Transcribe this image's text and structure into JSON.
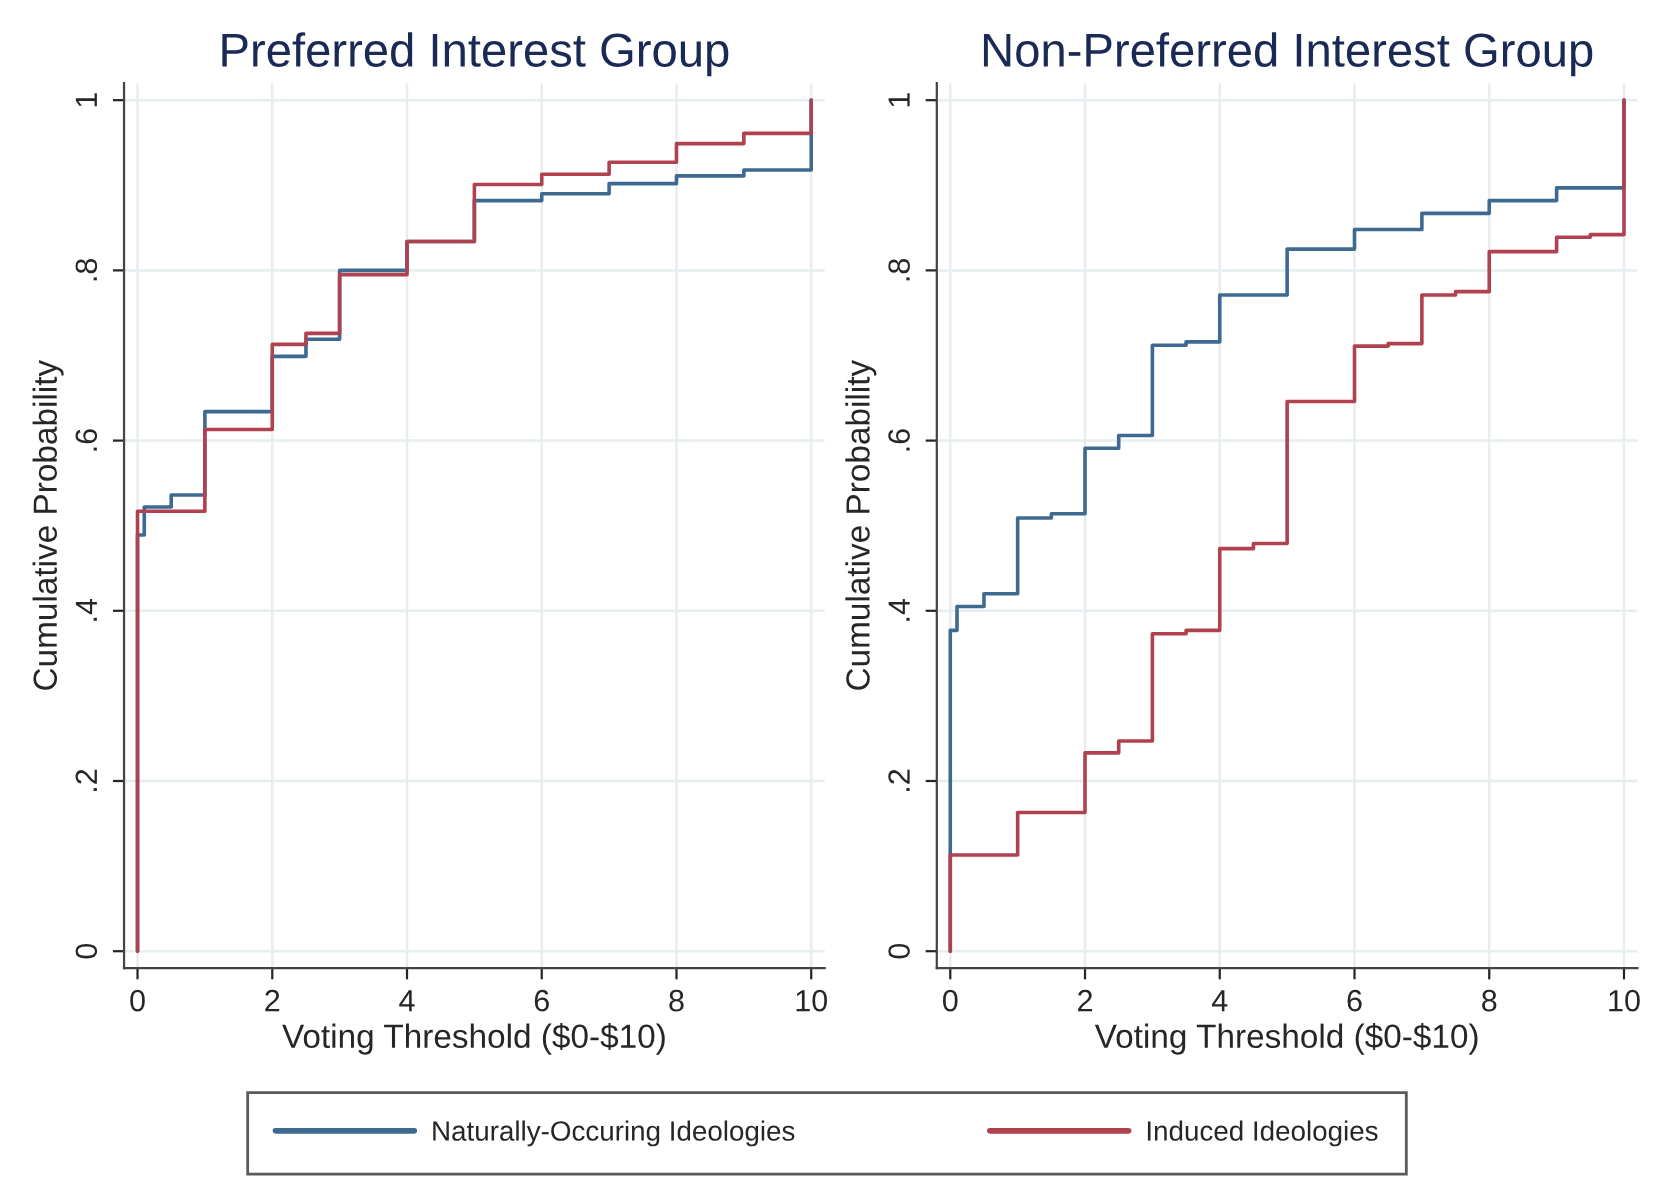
{
  "chart_data": [
    {
      "type": "step",
      "title": "Preferred Interest Group",
      "xlabel": "Voting Threshold ($0-$10)",
      "ylabel": "Cumulative Probability",
      "xlim": [
        -0.2,
        10.2
      ],
      "ylim": [
        -0.02,
        1.02
      ],
      "xticks": [
        0,
        2,
        4,
        6,
        8,
        10
      ],
      "yticks": [
        {
          "value": 0,
          "label": "0"
        },
        {
          "value": 0.2,
          "label": ".2"
        },
        {
          "value": 0.4,
          "label": ".4"
        },
        {
          "value": 0.6,
          "label": ".6"
        },
        {
          "value": 0.8,
          "label": ".8"
        },
        {
          "value": 1,
          "label": "1"
        }
      ],
      "grid": true,
      "legend": "bottom",
      "series": [
        {
          "name": "Naturally-Occuring Ideologies",
          "color": "#3e6a92",
          "x": [
            0,
            0,
            0.1,
            0.5,
            1,
            2,
            2.5,
            3,
            4,
            5,
            6,
            7,
            8,
            9,
            10,
            10
          ],
          "values": [
            0,
            0.489,
            0.522,
            0.536,
            0.634,
            0.699,
            0.719,
            0.8,
            0.834,
            0.882,
            0.89,
            0.902,
            0.911,
            0.918,
            0.918,
            1
          ]
        },
        {
          "name": "Induced Ideologies",
          "color": "#b0424f",
          "x": [
            0,
            0,
            1,
            2,
            2.5,
            3,
            4,
            5,
            6,
            7,
            8,
            9,
            10,
            10
          ],
          "values": [
            0,
            0.517,
            0.613,
            0.713,
            0.726,
            0.795,
            0.834,
            0.901,
            0.913,
            0.927,
            0.949,
            0.961,
            0.961,
            1
          ]
        }
      ]
    },
    {
      "type": "step",
      "title": "Non-Preferred Interest Group",
      "xlabel": "Voting Threshold ($0-$10)",
      "ylabel": "Cumulative Probability",
      "xlim": [
        -0.2,
        10.2
      ],
      "ylim": [
        -0.02,
        1.02
      ],
      "xticks": [
        0,
        2,
        4,
        6,
        8,
        10
      ],
      "yticks": [
        {
          "value": 0,
          "label": "0"
        },
        {
          "value": 0.2,
          "label": ".2"
        },
        {
          "value": 0.4,
          "label": ".4"
        },
        {
          "value": 0.6,
          "label": ".6"
        },
        {
          "value": 0.8,
          "label": ".8"
        },
        {
          "value": 1,
          "label": "1"
        }
      ],
      "grid": true,
      "series": [
        {
          "color": "#3e6a92",
          "x": [
            0,
            0,
            0.1,
            0.5,
            1,
            1.5,
            2,
            2.5,
            3,
            3.5,
            4,
            5,
            6,
            7,
            8,
            9,
            10,
            10
          ],
          "values": [
            0,
            0.377,
            0.405,
            0.42,
            0.509,
            0.514,
            0.591,
            0.606,
            0.712,
            0.716,
            0.771,
            0.825,
            0.848,
            0.867,
            0.882,
            0.897,
            0.897,
            1
          ]
        },
        {
          "color": "#b0424f",
          "x": [
            0,
            0,
            1,
            2,
            2.5,
            3,
            3.5,
            4,
            4.5,
            5,
            6,
            6.5,
            7,
            7.5,
            8,
            9,
            9.5,
            10,
            10
          ],
          "values": [
            0,
            0.113,
            0.163,
            0.233,
            0.247,
            0.373,
            0.377,
            0.473,
            0.479,
            0.646,
            0.711,
            0.714,
            0.771,
            0.775,
            0.822,
            0.839,
            0.842,
            0.842,
            1
          ]
        }
      ]
    }
  ]
}
